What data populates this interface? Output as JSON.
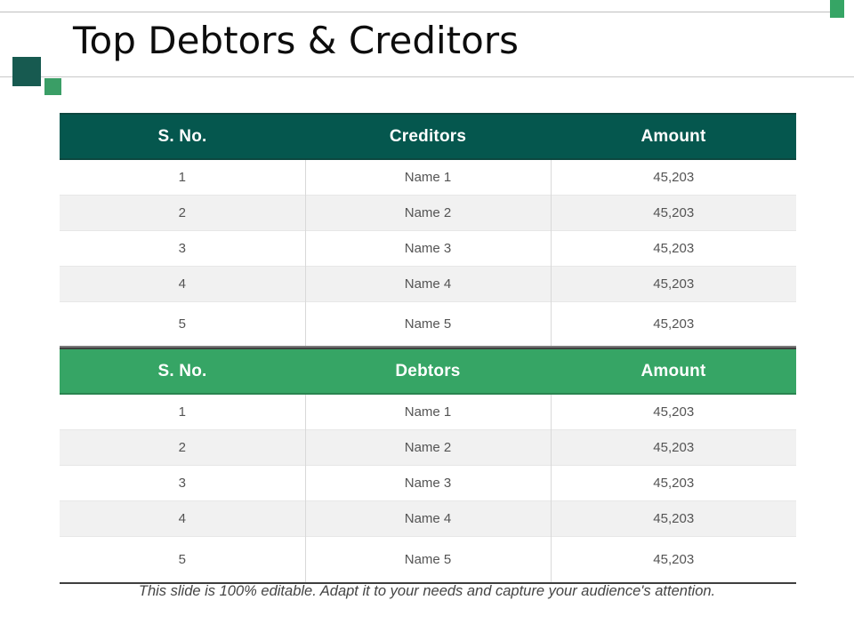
{
  "slide": {
    "title": "Top Debtors & Creditors",
    "footer": "This slide is 100% editable. Adapt it to your needs and capture your audience's attention."
  },
  "colors": {
    "creditors_header_bg": "#05574e",
    "debtors_header_bg": "#36a565",
    "accent_square_teal": "#175a50",
    "accent_square_green": "#3a9e66",
    "corner_square_green": "#36a565",
    "alt_row_bg": "#f1f1f1",
    "body_text": "#545454",
    "rule_gray": "#bfbfbf"
  },
  "tables": [
    {
      "id": "creditors",
      "headers": [
        "S. No.",
        "Creditors",
        "Amount"
      ],
      "rows": [
        [
          "1",
          "Name 1",
          "45,203"
        ],
        [
          "2",
          "Name 2",
          "45,203"
        ],
        [
          "3",
          "Name 3",
          "45,203"
        ],
        [
          "4",
          "Name 4",
          "45,203"
        ],
        [
          "5",
          "Name 5",
          "45,203"
        ]
      ]
    },
    {
      "id": "debtors",
      "headers": [
        "S. No.",
        "Debtors",
        "Amount"
      ],
      "rows": [
        [
          "1",
          "Name 1",
          "45,203"
        ],
        [
          "2",
          "Name 2",
          "45,203"
        ],
        [
          "3",
          "Name 3",
          "45,203"
        ],
        [
          "4",
          "Name 4",
          "45,203"
        ],
        [
          "5",
          "Name 5",
          "45,203"
        ]
      ]
    }
  ]
}
